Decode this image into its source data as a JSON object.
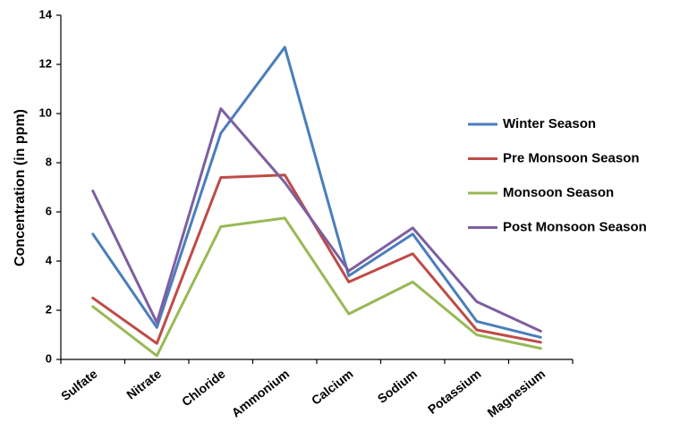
{
  "chart_data": {
    "type": "line",
    "title": "",
    "xlabel": "",
    "ylabel": "Concentration (in ppm)",
    "ylim": [
      0,
      14
    ],
    "yticks": [
      0,
      2,
      4,
      6,
      8,
      10,
      12,
      14
    ],
    "grid": false,
    "legend_position": "right",
    "categories": [
      "Sulfate",
      "Nitrate",
      "Chloride",
      "Ammonium",
      "Calcium",
      "Sodium",
      "Potassium",
      "Magnesium"
    ],
    "series": [
      {
        "name": "Winter Season",
        "color": "#4a7ebb",
        "values": [
          5.1,
          1.3,
          9.2,
          12.7,
          3.4,
          5.1,
          1.55,
          0.9
        ]
      },
      {
        "name": "Pre Monsoon Season",
        "color": "#be4b48",
        "values": [
          2.5,
          0.65,
          7.4,
          7.5,
          3.15,
          4.3,
          1.2,
          0.7
        ]
      },
      {
        "name": "Monsoon Season",
        "color": "#98b954",
        "values": [
          2.15,
          0.15,
          5.4,
          5.75,
          1.85,
          3.15,
          1.0,
          0.45
        ]
      },
      {
        "name": "Post Monsoon Season",
        "color": "#7d5fa0",
        "values": [
          6.85,
          1.5,
          10.2,
          7.2,
          3.6,
          5.35,
          2.35,
          1.15
        ]
      }
    ]
  }
}
